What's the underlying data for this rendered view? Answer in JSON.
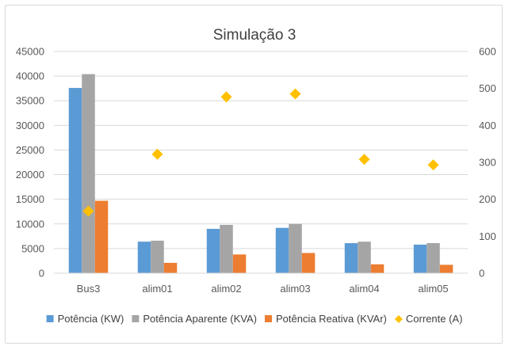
{
  "chart_data": {
    "type": "bar",
    "title": "Simulação 3",
    "categories": [
      "Bus3",
      "alim01",
      "alim02",
      "alim03",
      "alim04",
      "alim05"
    ],
    "series": [
      {
        "name": "Potência (KW)",
        "type": "bar",
        "axis": "left",
        "color": "#5b9bd5",
        "values": [
          37600,
          6400,
          9000,
          9200,
          6100,
          5800
        ]
      },
      {
        "name": "Potência Aparente (KVA)",
        "type": "bar",
        "axis": "left",
        "color": "#a5a5a5",
        "values": [
          40400,
          6600,
          9800,
          10000,
          6400,
          6100
        ]
      },
      {
        "name": "Potência Reativa (KVAr)",
        "type": "bar",
        "axis": "left",
        "color": "#ed7d31",
        "values": [
          14700,
          2100,
          3800,
          4100,
          1800,
          1700
        ]
      },
      {
        "name": "Corrente (A)",
        "type": "scatter",
        "axis": "right",
        "color": "#ffc000",
        "values": [
          168,
          322,
          477,
          485,
          308,
          293
        ]
      }
    ],
    "y_left": {
      "range": [
        0,
        45000
      ],
      "ticks": [
        "0",
        "5000",
        "10000",
        "15000",
        "20000",
        "25000",
        "30000",
        "35000",
        "40000",
        "45000"
      ]
    },
    "y_right": {
      "range": [
        0,
        600
      ],
      "ticks": [
        "0",
        "100",
        "200",
        "300",
        "400",
        "500",
        "600"
      ]
    },
    "grid": true,
    "legend_position": "bottom"
  }
}
